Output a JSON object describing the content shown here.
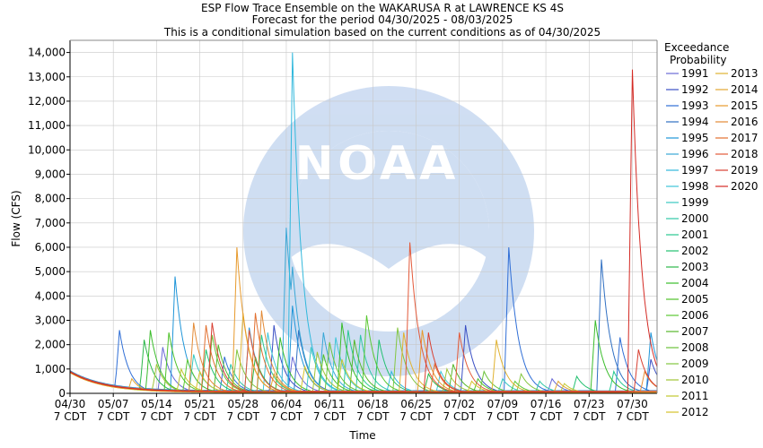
{
  "chart_data": {
    "type": "line",
    "title": "ESP Flow Trace Ensemble on the WAKARUSA R at LAWRENCE KS 4S",
    "subtitle": "Forecast for the period 04/30/2025 - 08/03/2025",
    "subtitle2": "This is a conditional simulation based on the current conditions as of 04/30/2025",
    "xlabel": "Time",
    "ylabel": "Flow (CFS)",
    "ylim": [
      0,
      14500
    ],
    "yticks": [
      "0",
      "1,000",
      "2,000",
      "3,000",
      "4,000",
      "5,000",
      "6,000",
      "7,000",
      "8,000",
      "9,000",
      "10,000",
      "11,000",
      "12,000",
      "13,000",
      "14,000"
    ],
    "xlim": [
      "04/30",
      "08/03"
    ],
    "xticks": [
      {
        "day": 0,
        "date": "04/30",
        "tz": "7 CDT"
      },
      {
        "day": 7,
        "date": "05/07",
        "tz": "7 CDT"
      },
      {
        "day": 14,
        "date": "05/14",
        "tz": "7 CDT"
      },
      {
        "day": 21,
        "date": "05/21",
        "tz": "7 CDT"
      },
      {
        "day": 28,
        "date": "05/28",
        "tz": "7 CDT"
      },
      {
        "day": 35,
        "date": "06/04",
        "tz": "7 CDT"
      },
      {
        "day": 42,
        "date": "06/11",
        "tz": "7 CDT"
      },
      {
        "day": 49,
        "date": "06/18",
        "tz": "7 CDT"
      },
      {
        "day": 56,
        "date": "06/25",
        "tz": "7 CDT"
      },
      {
        "day": 63,
        "date": "07/02",
        "tz": "7 CDT"
      },
      {
        "day": 70,
        "date": "07/09",
        "tz": "7 CDT"
      },
      {
        "day": 77,
        "date": "07/16",
        "tz": "7 CDT"
      },
      {
        "day": 84,
        "date": "07/23",
        "tz": "7 CDT"
      },
      {
        "day": 91,
        "date": "07/30",
        "tz": "7 CDT"
      }
    ],
    "grid": true,
    "watermark": "NOAA",
    "legend": {
      "title": "Exceedance",
      "title2": "Probability",
      "placement": "right"
    },
    "series": [
      {
        "name": "1991",
        "color": "#6a6ad6",
        "peaks": [
          [
            15,
            1900
          ],
          [
            36,
            1500
          ],
          [
            78,
            600
          ]
        ],
        "base": 90
      },
      {
        "name": "1992",
        "color": "#3a4fc4",
        "peaks": [
          [
            33,
            2800
          ],
          [
            64,
            2800
          ],
          [
            94,
            1400
          ]
        ],
        "base": 80
      },
      {
        "name": "1993",
        "color": "#2f6ed6",
        "peaks": [
          [
            8,
            2600
          ],
          [
            25,
            1500
          ],
          [
            71,
            6000
          ],
          [
            89,
            2300
          ]
        ],
        "base": 90
      },
      {
        "name": "1994",
        "color": "#2f6fc2",
        "peaks": [
          [
            37,
            2600
          ],
          [
            86,
            5500
          ],
          [
            87,
            2800
          ]
        ],
        "base": 110
      },
      {
        "name": "1995",
        "color": "#1f95d8",
        "peaks": [
          [
            17,
            4800
          ],
          [
            29,
            2700
          ],
          [
            36,
            3600
          ],
          [
            94,
            2500
          ]
        ],
        "base": 100
      },
      {
        "name": "1996",
        "color": "#3aa7d6",
        "peaks": [
          [
            35,
            6800
          ],
          [
            36,
            5200
          ],
          [
            41,
            2500
          ]
        ],
        "base": 80
      },
      {
        "name": "1997",
        "color": "#31b8dc",
        "peaks": [
          [
            36,
            14000
          ],
          [
            38,
            2600
          ],
          [
            52,
            900
          ]
        ],
        "base": 70
      },
      {
        "name": "1998",
        "color": "#3ec5d8",
        "peaks": [
          [
            32,
            2500
          ],
          [
            43,
            2300
          ],
          [
            60,
            900
          ]
        ],
        "base": 60
      },
      {
        "name": "1999",
        "color": "#38c9c0",
        "peaks": [
          [
            20,
            1600
          ],
          [
            39,
            1900
          ],
          [
            70,
            600
          ]
        ],
        "base": 60
      },
      {
        "name": "2000",
        "color": "#30c7a6",
        "peaks": [
          [
            26,
            1200
          ],
          [
            47,
            2400
          ],
          [
            76,
            500
          ]
        ],
        "base": 50
      },
      {
        "name": "2001",
        "color": "#28c890",
        "peaks": [
          [
            31,
            2400
          ],
          [
            45,
            2600
          ],
          [
            88,
            900
          ]
        ],
        "base": 60
      },
      {
        "name": "2002",
        "color": "#22c070",
        "peaks": [
          [
            22,
            1800
          ],
          [
            50,
            2200
          ],
          [
            82,
            700
          ]
        ],
        "base": 50
      },
      {
        "name": "2003",
        "color": "#2cb84a",
        "peaks": [
          [
            12,
            2200
          ],
          [
            30,
            1500
          ],
          [
            58,
            800
          ]
        ],
        "base": 50
      },
      {
        "name": "2004",
        "color": "#3bbd2c",
        "peaks": [
          [
            13,
            2600
          ],
          [
            34,
            2300
          ],
          [
            44,
            2900
          ],
          [
            85,
            3000
          ]
        ],
        "base": 70
      },
      {
        "name": "2005",
        "color": "#4fc22a",
        "peaks": [
          [
            16,
            2500
          ],
          [
            41,
            1600
          ],
          [
            66,
            600
          ]
        ],
        "base": 50
      },
      {
        "name": "2006",
        "color": "#5ac832",
        "peaks": [
          [
            19,
            1400
          ],
          [
            48,
            3200
          ],
          [
            72,
            500
          ]
        ],
        "base": 40
      },
      {
        "name": "2007",
        "color": "#56b82c",
        "peaks": [
          [
            24,
            2000
          ],
          [
            46,
            2200
          ],
          [
            62,
            1200
          ]
        ],
        "base": 50
      },
      {
        "name": "2008",
        "color": "#6ac23a",
        "peaks": [
          [
            23,
            2400
          ],
          [
            42,
            2100
          ],
          [
            67,
            900
          ]
        ],
        "base": 50
      },
      {
        "name": "2009",
        "color": "#83c640",
        "peaks": [
          [
            27,
            1800
          ],
          [
            53,
            2700
          ],
          [
            73,
            800
          ]
        ],
        "base": 50
      },
      {
        "name": "2010",
        "color": "#a0c436",
        "peaks": [
          [
            14,
            1200
          ],
          [
            40,
            1700
          ],
          [
            61,
            1000
          ]
        ],
        "base": 40
      },
      {
        "name": "2011",
        "color": "#c0c830",
        "peaks": [
          [
            18,
            1000
          ],
          [
            44,
            1400
          ],
          [
            80,
            400
          ]
        ],
        "base": 40
      },
      {
        "name": "2012",
        "color": "#d6c22a",
        "peaks": [
          [
            21,
            900
          ],
          [
            38,
            1100
          ],
          [
            65,
            500
          ]
        ],
        "base": 30
      },
      {
        "name": "2013",
        "color": "#e0b230",
        "peaks": [
          [
            28,
            3300
          ],
          [
            54,
            2500
          ],
          [
            69,
            2200
          ]
        ],
        "base": 60
      },
      {
        "name": "2014",
        "color": "#e2a630",
        "peaks": [
          [
            10,
            600
          ],
          [
            33,
            800
          ],
          [
            79,
            500
          ]
        ],
        "base": 30
      },
      {
        "name": "2015",
        "color": "#e79a2c",
        "peaks": [
          [
            27,
            6000
          ],
          [
            28,
            3000
          ],
          [
            57,
            2600
          ]
        ],
        "base": 80
      },
      {
        "name": "2016",
        "color": "#e38a36",
        "peaks": [
          [
            20,
            2900
          ],
          [
            31,
            3400
          ],
          [
            93,
            900
          ]
        ],
        "base": 60
      },
      {
        "name": "2017",
        "color": "#e27030",
        "peaks": [
          [
            22,
            2800
          ],
          [
            30,
            3300
          ],
          [
            59,
            1200
          ]
        ],
        "base": 70
      },
      {
        "name": "2018",
        "color": "#e35a3a",
        "peaks": [
          [
            29,
            2600
          ],
          [
            55,
            6200
          ],
          [
            63,
            2500
          ]
        ],
        "base": 80
      },
      {
        "name": "2019",
        "color": "#d84032",
        "peaks": [
          [
            23,
            2900
          ],
          [
            58,
            2500
          ],
          [
            92,
            1800
          ]
        ],
        "base": 70
      },
      {
        "name": "2020",
        "color": "#d42a24",
        "peaks": [
          [
            91,
            13300
          ],
          [
            93,
            2700
          ]
        ],
        "base": 60
      }
    ]
  }
}
